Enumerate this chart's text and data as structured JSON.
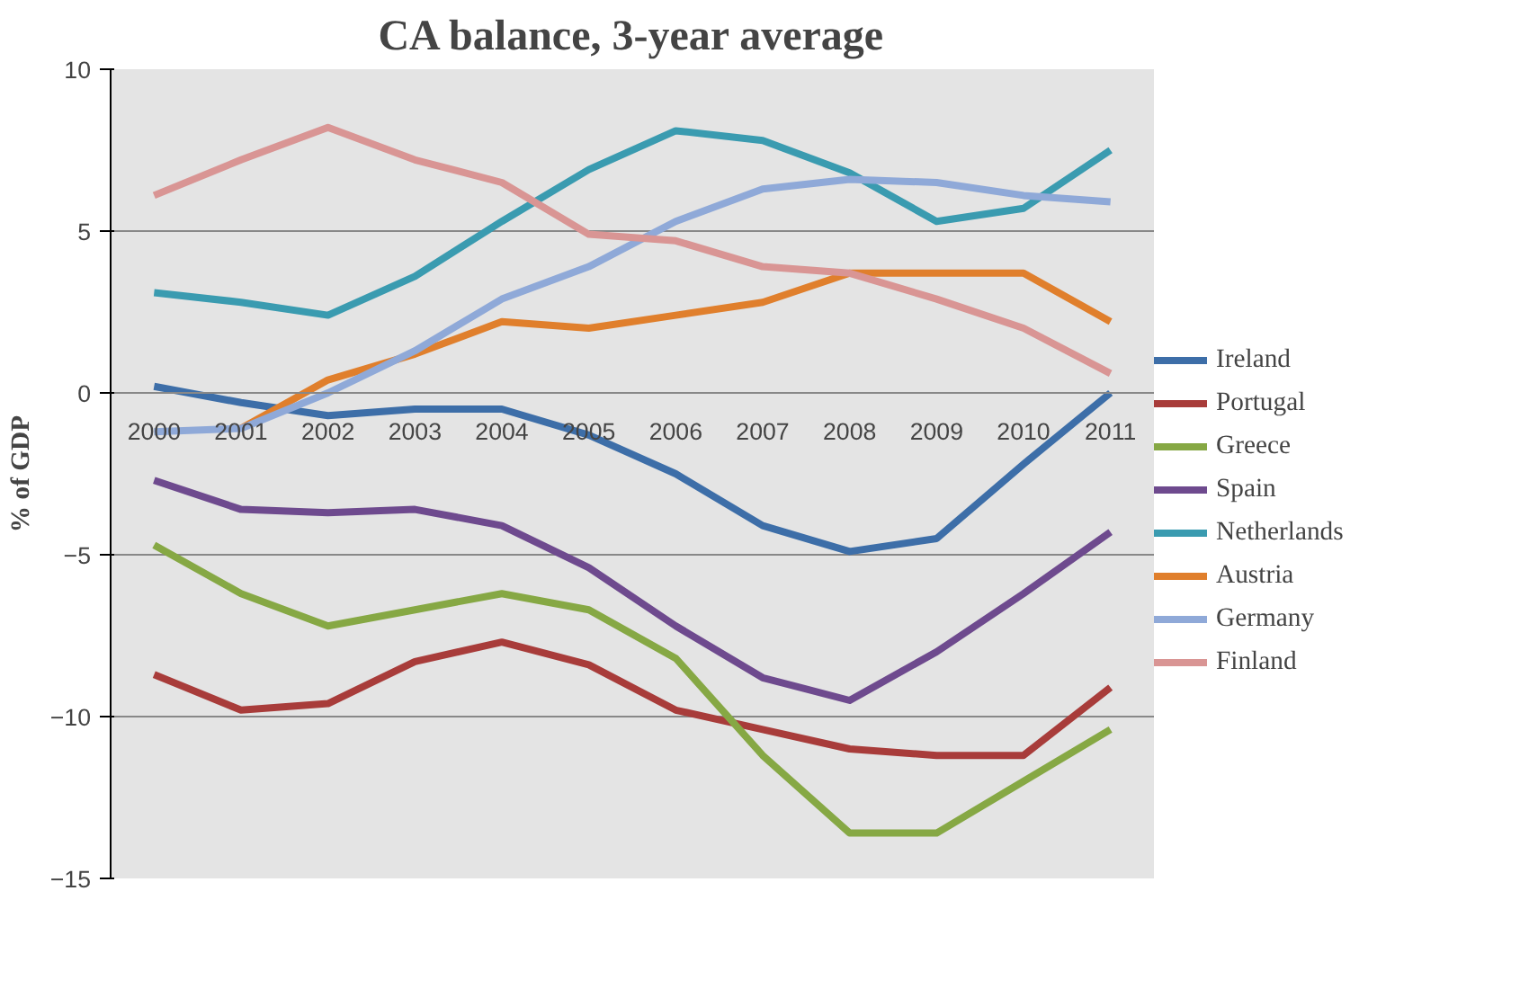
{
  "chart_data": {
    "type": "line",
    "title": "CA balance, 3-year average",
    "ylabel": "% of GDP",
    "categories": [
      "2000",
      "2001",
      "2002",
      "2003",
      "2004",
      "2005",
      "2006",
      "2007",
      "2008",
      "2009",
      "2010",
      "2011"
    ],
    "ylim": [
      -15,
      10
    ],
    "yticks": [
      -15,
      -10,
      -5,
      0,
      5,
      10
    ],
    "grid": "y",
    "legend": "right",
    "marker": "none",
    "line_style": "solid",
    "series": [
      {
        "name": "Ireland",
        "color": "#3d6ea8",
        "values": [
          0.2,
          -0.3,
          -0.7,
          -0.5,
          -0.5,
          -1.3,
          -2.5,
          -4.1,
          -4.9,
          -4.5,
          -2.2,
          0.0
        ]
      },
      {
        "name": "Portugal",
        "color": "#a83c3a",
        "values": [
          -8.7,
          -9.8,
          -9.6,
          -8.3,
          -7.7,
          -8.4,
          -9.8,
          -10.4,
          -11.0,
          -11.2,
          -11.2,
          -9.1
        ]
      },
      {
        "name": "Greece",
        "color": "#86a844",
        "values": [
          -4.7,
          -6.2,
          -7.2,
          -6.7,
          -6.2,
          -6.7,
          -8.2,
          -11.2,
          -13.6,
          -13.6,
          -12.0,
          -10.4
        ]
      },
      {
        "name": "Spain",
        "color": "#6e4a8e",
        "values": [
          -2.7,
          -3.6,
          -3.7,
          -3.6,
          -4.1,
          -5.4,
          -7.2,
          -8.8,
          -9.5,
          -8.0,
          -6.2,
          -4.3
        ]
      },
      {
        "name": "Netherlands",
        "color": "#3a9bb0",
        "values": [
          3.1,
          2.8,
          2.4,
          3.6,
          5.3,
          6.9,
          8.1,
          7.8,
          6.8,
          5.3,
          5.7,
          7.5
        ]
      },
      {
        "name": "Austria",
        "color": "#e07f2c",
        "values": [
          null,
          -1.1,
          0.4,
          1.2,
          2.2,
          2.0,
          2.4,
          2.8,
          3.7,
          3.7,
          3.7,
          2.2
        ]
      },
      {
        "name": "Germany",
        "color": "#8fa9d8",
        "values": [
          -1.2,
          -1.1,
          0.0,
          1.3,
          2.9,
          3.9,
          5.3,
          6.3,
          6.6,
          6.5,
          6.1,
          5.9
        ]
      },
      {
        "name": "Finland",
        "color": "#d99594",
        "values": [
          6.1,
          7.2,
          8.2,
          7.2,
          6.5,
          4.9,
          4.7,
          3.9,
          3.7,
          2.9,
          2.0,
          0.6
        ]
      }
    ]
  }
}
